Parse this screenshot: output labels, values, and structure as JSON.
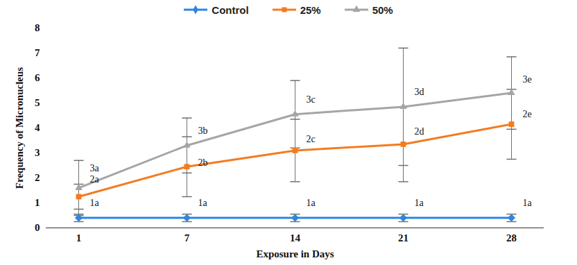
{
  "chart_data": {
    "type": "line",
    "x_label": "Exposure in Days",
    "y_label": "Frequency of Micronucleus",
    "categories": [
      "1",
      "7",
      "14",
      "21",
      "28"
    ],
    "ylim": [
      0,
      8
    ],
    "yticks": [
      0,
      1,
      2,
      3,
      4,
      5,
      6,
      7,
      8
    ],
    "legend": "top",
    "series": [
      {
        "name": "Control",
        "color": "#2e86de",
        "marker": "diamond",
        "values": [
          0.4,
          0.4,
          0.4,
          0.4,
          0.4
        ],
        "errors": [
          0.15,
          0.15,
          0.15,
          0.15,
          0.15
        ]
      },
      {
        "name": "25%",
        "color": "#f47b20",
        "marker": "square",
        "values": [
          1.25,
          2.45,
          3.1,
          3.35,
          4.15
        ],
        "errors": [
          0.5,
          1.2,
          1.25,
          1.5,
          1.4
        ]
      },
      {
        "name": "50%",
        "color": "#a5a5a5",
        "marker": "triangle",
        "values": [
          1.6,
          3.3,
          4.55,
          4.85,
          5.4
        ],
        "errors": [
          1.1,
          1.1,
          1.35,
          2.35,
          1.45
        ]
      }
    ],
    "annotations": [
      {
        "x": "1",
        "y": 2.4,
        "text": "3a"
      },
      {
        "x": "1",
        "y": 1.95,
        "text": "2a"
      },
      {
        "x": "1",
        "y": 1.0,
        "text": "1a"
      },
      {
        "x": "7",
        "y": 3.9,
        "text": "3b"
      },
      {
        "x": "7",
        "y": 2.6,
        "text": "2b"
      },
      {
        "x": "7",
        "y": 1.0,
        "text": "1a"
      },
      {
        "x": "14",
        "y": 5.15,
        "text": "3c"
      },
      {
        "x": "14",
        "y": 3.55,
        "text": "2c"
      },
      {
        "x": "14",
        "y": 1.0,
        "text": "1a"
      },
      {
        "x": "21",
        "y": 5.45,
        "text": "3d"
      },
      {
        "x": "21",
        "y": 3.85,
        "text": "2d"
      },
      {
        "x": "21",
        "y": 1.0,
        "text": "1a"
      },
      {
        "x": "28",
        "y": 5.95,
        "text": "3e"
      },
      {
        "x": "28",
        "y": 4.55,
        "text": "2e"
      },
      {
        "x": "28",
        "y": 1.0,
        "text": "1a"
      }
    ]
  }
}
